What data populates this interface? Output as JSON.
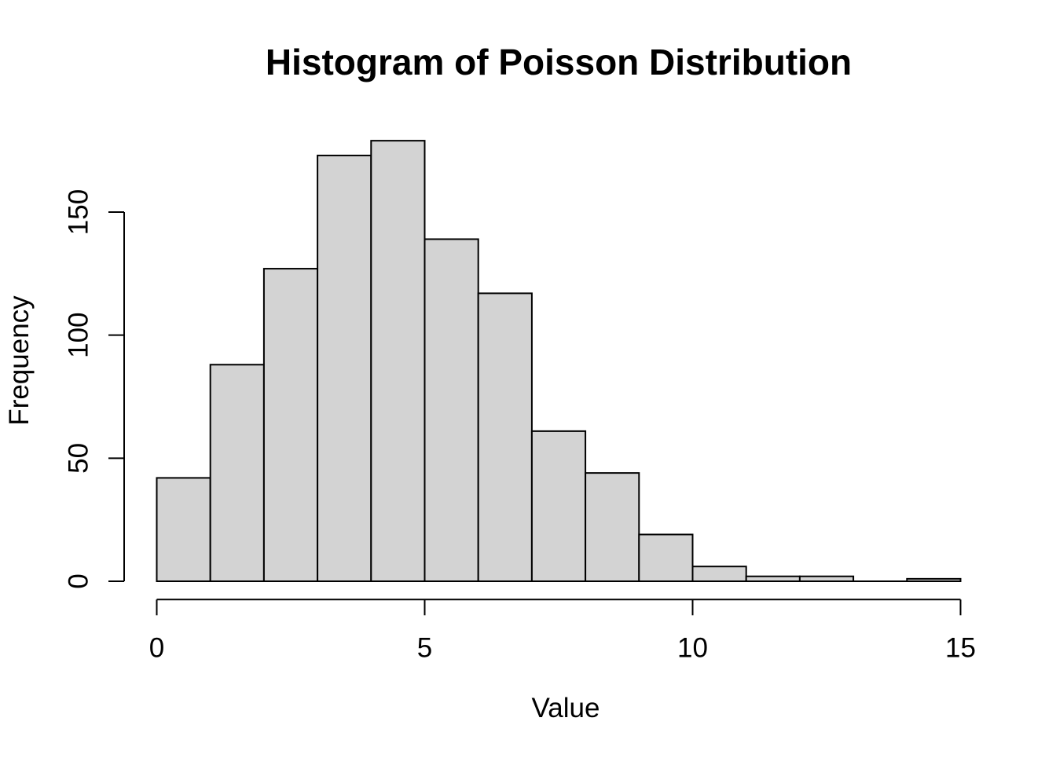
{
  "chart_data": {
    "type": "bar",
    "subtype": "histogram",
    "title": "Histogram of Poisson Distribution",
    "xlabel": "Value",
    "ylabel": "Frequency",
    "bin_edges": [
      0,
      1,
      2,
      3,
      4,
      5,
      6,
      7,
      8,
      9,
      10,
      11,
      12,
      13,
      14,
      15
    ],
    "counts": [
      42,
      88,
      127,
      173,
      179,
      139,
      117,
      61,
      44,
      19,
      6,
      2,
      2,
      0,
      1
    ],
    "total_samples": 1000,
    "x_ticks": [
      0,
      5,
      10,
      15
    ],
    "y_ticks": [
      0,
      50,
      100,
      150
    ],
    "xlim": [
      0,
      15
    ],
    "ylim": [
      0,
      150
    ],
    "grid": "off",
    "legend": "none",
    "colors": {
      "bar_fill": "#d3d3d3",
      "bar_stroke": "#000000",
      "axis": "#000000",
      "text": "#000000",
      "background": "#ffffff"
    }
  }
}
